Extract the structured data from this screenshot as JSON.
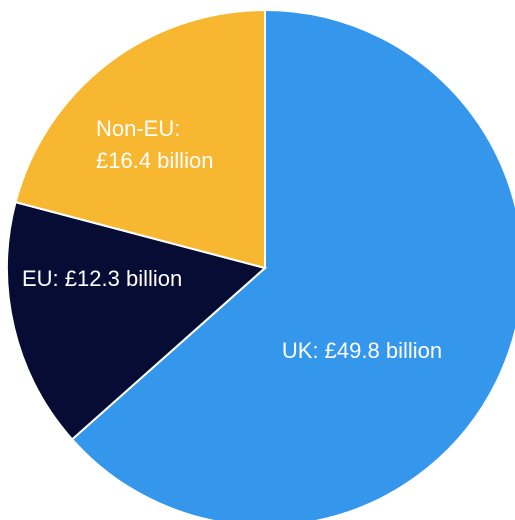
{
  "chart_data": {
    "type": "pie",
    "title": "",
    "slices": [
      {
        "category": "UK",
        "value": 49.8,
        "label_lines": [
          "UK: £49.8 billion"
        ],
        "color": "#3497EC",
        "text_color": "#ffffff"
      },
      {
        "category": "EU",
        "value": 12.3,
        "label_lines": [
          "EU: £12.3 billion"
        ],
        "color": "#070C35",
        "text_color": "#ffffff"
      },
      {
        "category": "Non-EU",
        "value": 16.4,
        "label_lines": [
          "Non-EU:",
          "£16.4 billion"
        ],
        "color": "#F7B731",
        "text_color": "#ffffff"
      }
    ],
    "start": "top",
    "direction": "clockwise",
    "legend": "none"
  }
}
